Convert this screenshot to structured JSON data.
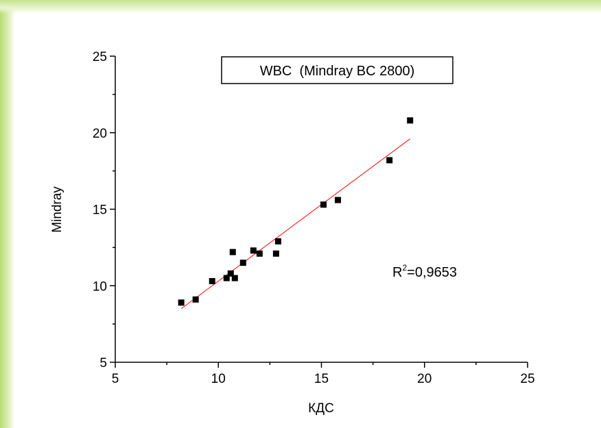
{
  "colors": {
    "background_accent": "#b9dc73",
    "fit_line": "#ff0000",
    "points": "#000000",
    "axes": "#000000"
  },
  "chart_data": {
    "type": "scatter",
    "title": "WBC  (Mindray BC 2800)",
    "xlabel": "КДС",
    "ylabel": "Mindray",
    "xlim": [
      5,
      25
    ],
    "ylim": [
      5,
      25
    ],
    "x_ticks": [
      "5",
      "10",
      "15",
      "20",
      "25"
    ],
    "y_ticks": [
      "5",
      "10",
      "15",
      "20",
      "25"
    ],
    "grid": false,
    "annotation": {
      "text_base": "R",
      "text_sup": "2",
      "text_rest": "=0,9653"
    },
    "points": [
      {
        "x": 8.2,
        "y": 8.9
      },
      {
        "x": 8.9,
        "y": 9.1
      },
      {
        "x": 9.7,
        "y": 10.3
      },
      {
        "x": 10.4,
        "y": 10.5
      },
      {
        "x": 10.6,
        "y": 10.8
      },
      {
        "x": 10.7,
        "y": 12.2
      },
      {
        "x": 10.8,
        "y": 10.5
      },
      {
        "x": 11.2,
        "y": 11.5
      },
      {
        "x": 11.7,
        "y": 12.3
      },
      {
        "x": 12.0,
        "y": 12.1
      },
      {
        "x": 12.8,
        "y": 12.1
      },
      {
        "x": 12.9,
        "y": 12.9
      },
      {
        "x": 15.1,
        "y": 15.3
      },
      {
        "x": 15.8,
        "y": 15.6
      },
      {
        "x": 18.3,
        "y": 18.2
      },
      {
        "x": 19.3,
        "y": 20.8
      }
    ],
    "fit_line": {
      "x_start": 8.2,
      "y_start": 8.5,
      "x_end": 19.3,
      "y_end": 19.6
    }
  }
}
